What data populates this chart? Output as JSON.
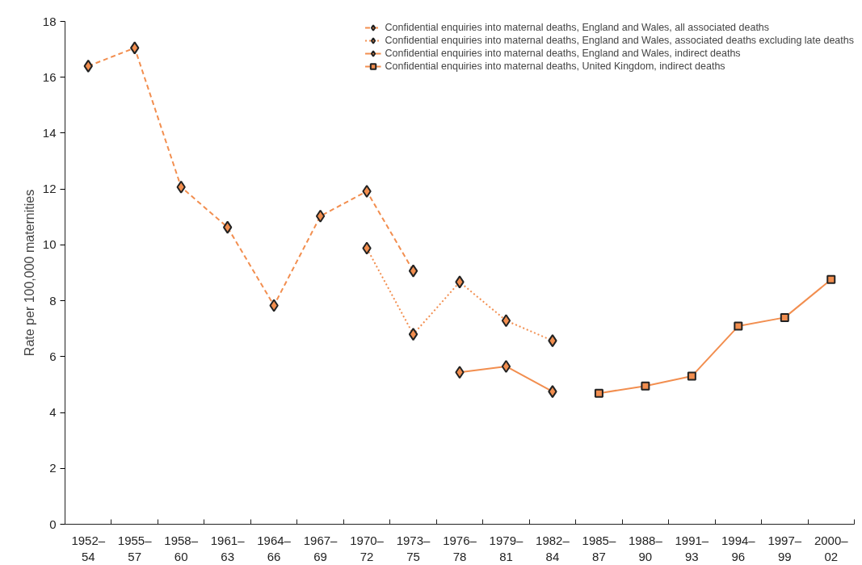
{
  "chart_data": {
    "type": "line",
    "ylabel": "Rate per 100,000 maternities",
    "categories": [
      "1952–\n54",
      "1955–\n57",
      "1958–\n60",
      "1961–\n63",
      "1964–\n66",
      "1967–\n69",
      "1970–\n72",
      "1973–\n75",
      "1976–\n78",
      "1979–\n81",
      "1982–\n84",
      "1985–\n87",
      "1988–\n90",
      "1991–\n93",
      "1994–\n96",
      "1997–\n99",
      "2000–\n02"
    ],
    "ylim": [
      0,
      18
    ],
    "yticks": [
      0,
      2,
      4,
      6,
      8,
      10,
      12,
      14,
      16,
      18
    ],
    "grid": false,
    "legend": "top right",
    "series": [
      {
        "name": "Confidential enquiries into maternal deaths, England and Wales, all associated deaths",
        "color": "#f28e4f",
        "line_style": "dashed",
        "marker": "diamond",
        "values": [
          16.4,
          17.05,
          12.07,
          10.63,
          7.83,
          11.03,
          11.92,
          9.07,
          null,
          null,
          null,
          null,
          null,
          null,
          null,
          null,
          null
        ]
      },
      {
        "name": "Confidential enquiries into maternal deaths, England and Wales, associated deaths excluding late deaths",
        "color": "#f28e4f",
        "line_style": "dotted",
        "marker": "diamond",
        "values": [
          null,
          null,
          null,
          null,
          null,
          null,
          9.88,
          6.8,
          8.67,
          7.29,
          6.57,
          null,
          null,
          null,
          null,
          null,
          null
        ]
      },
      {
        "name": "Confidential enquiries into maternal deaths, England and Wales, indirect deaths",
        "color": "#f28e4f",
        "line_style": "solid",
        "marker": "diamond",
        "values": [
          null,
          null,
          null,
          null,
          null,
          null,
          null,
          null,
          5.44,
          5.65,
          4.75,
          null,
          null,
          null,
          null,
          null,
          null
        ]
      },
      {
        "name": "Confidential enquiries into maternal deaths, United Kingdom, indirect deaths",
        "color": "#f28e4f",
        "line_style": "solid",
        "marker": "square",
        "values": [
          null,
          null,
          null,
          null,
          null,
          null,
          null,
          null,
          null,
          null,
          null,
          4.69,
          4.95,
          5.3,
          7.09,
          7.4,
          8.76
        ]
      }
    ]
  }
}
